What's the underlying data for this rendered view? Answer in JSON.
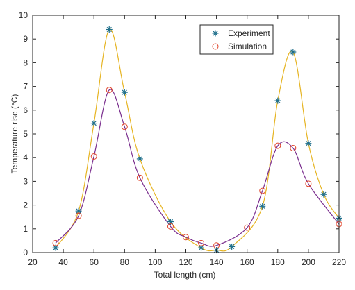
{
  "chart_data": {
    "type": "line",
    "xlabel": "Total length (cm)",
    "ylabel": "Temperature rise (°C)",
    "xlim": [
      20,
      220
    ],
    "ylim": [
      0,
      10
    ],
    "xticks": [
      20,
      40,
      60,
      80,
      100,
      120,
      140,
      160,
      180,
      200,
      220
    ],
    "yticks": [
      0,
      1,
      2,
      3,
      4,
      5,
      6,
      7,
      8,
      9,
      10
    ],
    "grid": false,
    "legend_position": "top-right",
    "series": [
      {
        "name": "Experiment",
        "marker": "asterisk",
        "color": "#1f6f8b",
        "fit_color": "#e6b422",
        "x": [
          35,
          50,
          60,
          70,
          80,
          90,
          110,
          130,
          140,
          150,
          170,
          180,
          190,
          200,
          210,
          220
        ],
        "y": [
          0.2,
          1.75,
          5.45,
          9.4,
          6.75,
          3.95,
          1.3,
          0.2,
          0.1,
          0.25,
          1.95,
          6.4,
          8.45,
          4.6,
          2.45,
          1.45
        ]
      },
      {
        "name": "Simulation",
        "marker": "circle",
        "color": "#e0442a",
        "fit_color": "#7a2e8e",
        "x": [
          35,
          50,
          60,
          70,
          80,
          90,
          110,
          120,
          130,
          140,
          160,
          170,
          180,
          190,
          200,
          220
        ],
        "y": [
          0.4,
          1.55,
          4.05,
          6.85,
          5.3,
          3.15,
          1.1,
          0.65,
          0.4,
          0.3,
          1.05,
          2.6,
          4.5,
          4.4,
          2.9,
          1.2
        ]
      }
    ]
  }
}
